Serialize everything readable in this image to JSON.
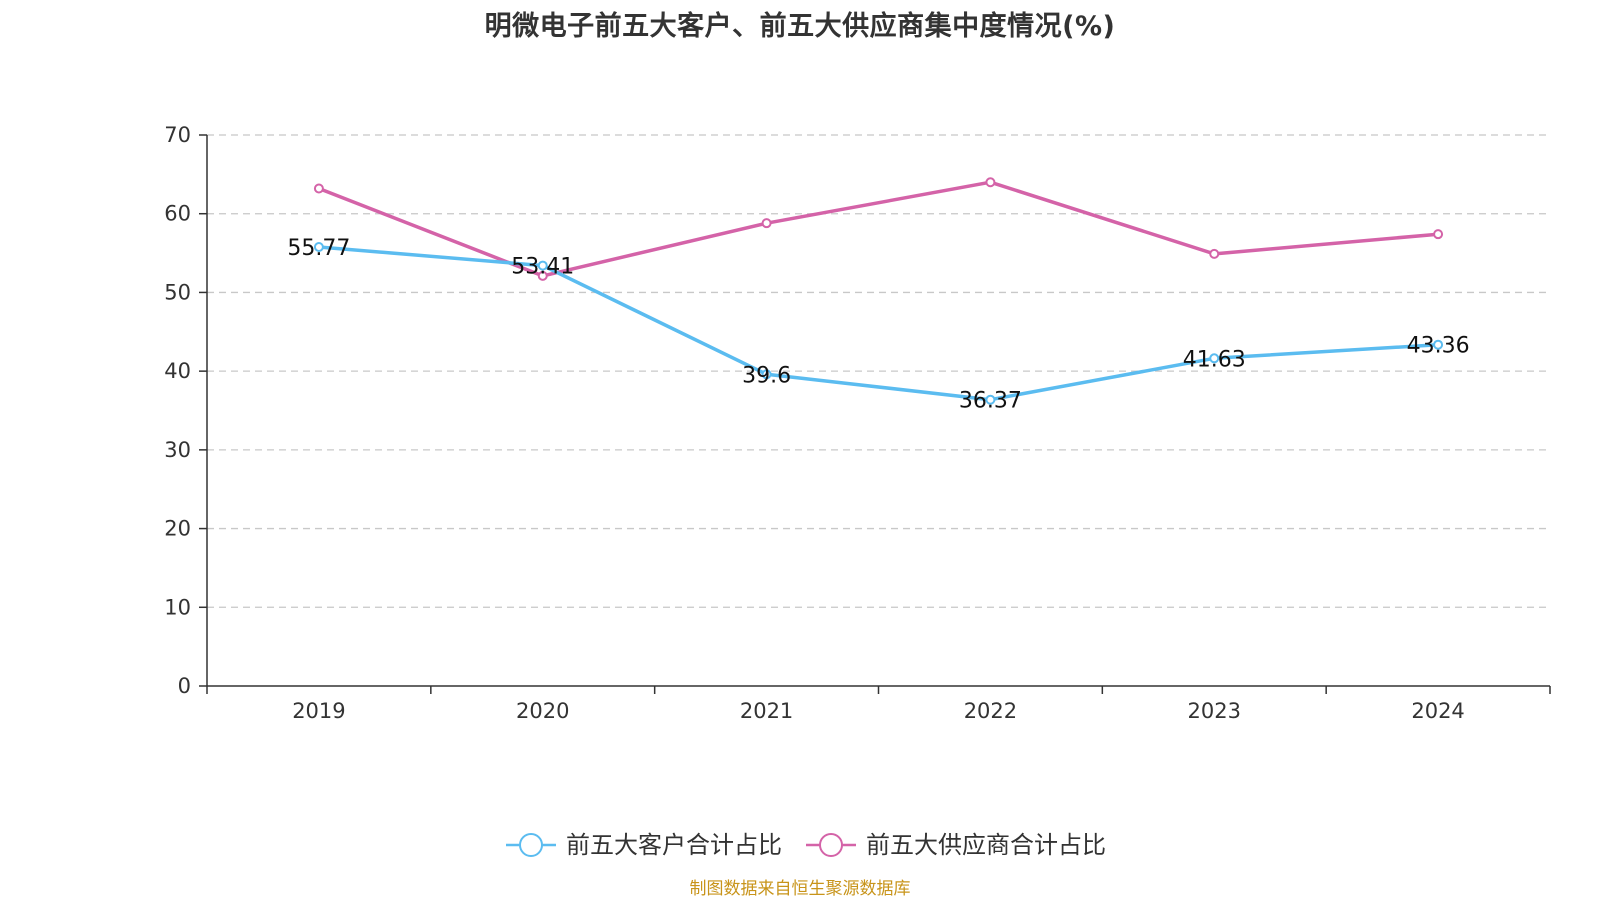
{
  "chart_data": {
    "type": "line",
    "title": "明微电子前五大客户、前五大供应商集中度情况(%)",
    "categories": [
      "2019",
      "2020",
      "2021",
      "2022",
      "2023",
      "2024"
    ],
    "series": [
      {
        "name": "前五大客户合计占比",
        "color": "#5bbcf0",
        "values": [
          55.77,
          53.41,
          39.6,
          36.37,
          41.63,
          43.36
        ],
        "labels": [
          "55.77",
          "53.41",
          "39.6",
          "36.37",
          "41.63",
          "43.36"
        ],
        "show_labels": true
      },
      {
        "name": "前五大供应商合计占比",
        "color": "#d463a8",
        "values": [
          63.2,
          52.1,
          58.8,
          64.0,
          54.9,
          57.4
        ],
        "show_labels": false
      }
    ],
    "ylim": [
      0,
      70
    ],
    "yticks": [
      0,
      10,
      20,
      30,
      40,
      50,
      60,
      70
    ],
    "ytick_labels": [
      "0",
      "10",
      "20",
      "30",
      "40",
      "50",
      "60",
      "70"
    ],
    "grid": true,
    "legend_position": "bottom-center",
    "xlabel": "",
    "ylabel": ""
  },
  "source_note": "制图数据来自恒生聚源数据库"
}
